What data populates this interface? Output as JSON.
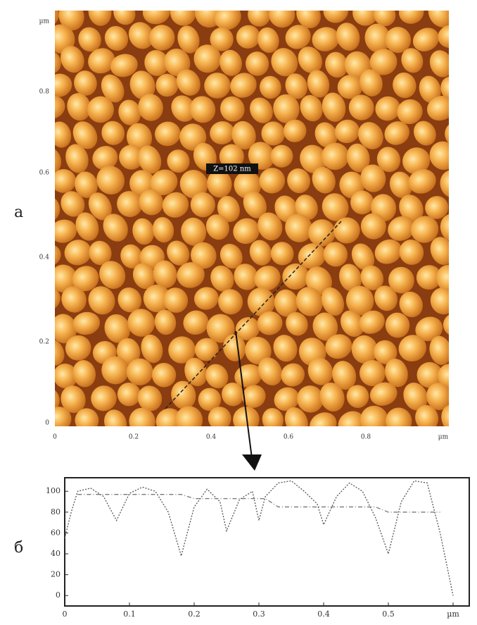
{
  "panel_labels": {
    "a": "а",
    "b": "б"
  },
  "afm_image": {
    "scale_label": "Z=102 nm",
    "y_labels": [
      "µm",
      "0.8",
      "0.6",
      "0.4",
      "0.2",
      "0"
    ],
    "x_labels": [
      "0",
      "0.2",
      "0.4",
      "0.6",
      "0.8",
      "µm"
    ]
  },
  "chart_data": {
    "type": "line",
    "x": [
      0.0,
      0.01,
      0.02,
      0.04,
      0.06,
      0.08,
      0.1,
      0.12,
      0.14,
      0.16,
      0.18,
      0.2,
      0.22,
      0.24,
      0.25,
      0.27,
      0.29,
      0.3,
      0.31,
      0.33,
      0.35,
      0.37,
      0.39,
      0.4,
      0.42,
      0.44,
      0.46,
      0.48,
      0.5,
      0.52,
      0.54,
      0.56,
      0.58,
      0.6
    ],
    "series": [
      {
        "color": "#555555",
        "values": [
          55,
          80,
          100,
          103,
          95,
          72,
          98,
          104,
          100,
          80,
          38,
          85,
          102,
          90,
          62,
          92,
          100,
          72,
          95,
          108,
          110,
          100,
          88,
          68,
          95,
          108,
          100,
          75,
          40,
          90,
          110,
          108,
          60,
          0
        ]
      },
      {
        "color": "#777777",
        "values": [
          null,
          null,
          97,
          97,
          97,
          97,
          97,
          97,
          97,
          97,
          97,
          93,
          93,
          93,
          93,
          93,
          93,
          93,
          93,
          85,
          85,
          85,
          85,
          85,
          85,
          85,
          85,
          85,
          80,
          80,
          80,
          80,
          80,
          null
        ]
      }
    ],
    "xlim": [
      0,
      0.625
    ],
    "ylim": [
      -10,
      113
    ],
    "xticks": [
      0,
      0.1,
      0.2,
      0.3,
      0.4,
      0.5,
      {
        "value": 0.6,
        "label": "µm"
      }
    ],
    "yticks": [
      0,
      20,
      40,
      60,
      80,
      100
    ]
  }
}
